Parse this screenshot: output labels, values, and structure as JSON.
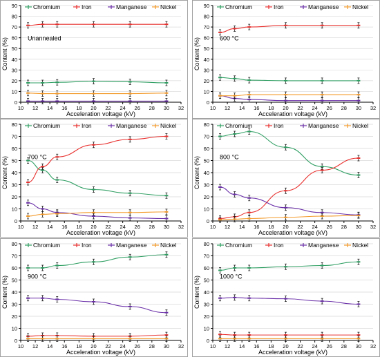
{
  "chart_data": [
    {
      "type": "line",
      "annotation": "Unannealed",
      "xlabel": "Acceleration voltage (kV)",
      "ylabel": "Content (%)",
      "xlim": [
        10,
        32
      ],
      "ylim": [
        0,
        90
      ],
      "xticks": [
        10,
        12,
        14,
        16,
        18,
        20,
        22,
        24,
        26,
        28,
        30,
        32
      ],
      "yticks": [
        0,
        10,
        20,
        30,
        40,
        50,
        60,
        70,
        80,
        90
      ],
      "legend_placement": "top",
      "x": [
        11,
        13,
        15,
        20,
        25,
        30
      ],
      "series": [
        {
          "name": "Chromium",
          "values": [
            18,
            18,
            18.5,
            19.5,
            19,
            18
          ]
        },
        {
          "name": "Iron",
          "values": [
            71.5,
            72.5,
            72.5,
            72.5,
            72.5,
            72.5
          ]
        },
        {
          "name": "Manganese",
          "values": [
            1,
            1,
            1,
            1,
            1,
            1
          ]
        },
        {
          "name": "Nickel",
          "values": [
            8.5,
            8,
            8,
            8,
            8,
            8.5
          ]
        }
      ]
    },
    {
      "type": "line",
      "annotation": "600 °C",
      "xlabel": "Acceleration voltage (kV)",
      "ylabel": "Content (%)",
      "xlim": [
        10,
        32
      ],
      "ylim": [
        0,
        90
      ],
      "xticks": [
        10,
        12,
        14,
        16,
        18,
        20,
        22,
        24,
        26,
        28,
        30,
        32
      ],
      "yticks": [
        0,
        10,
        20,
        30,
        40,
        50,
        60,
        70,
        80,
        90
      ],
      "legend_placement": "top",
      "x": [
        11,
        13,
        15,
        20,
        25,
        30
      ],
      "series": [
        {
          "name": "Chromium",
          "values": [
            23,
            22,
            20.5,
            20,
            20,
            20
          ]
        },
        {
          "name": "Iron",
          "values": [
            65,
            68.5,
            70,
            71.5,
            71.5,
            71.5
          ]
        },
        {
          "name": "Manganese",
          "values": [
            6,
            3.5,
            2.5,
            1.5,
            1.5,
            1.5
          ]
        },
        {
          "name": "Nickel",
          "values": [
            6,
            6,
            7,
            7,
            7,
            7
          ]
        }
      ]
    },
    {
      "type": "line",
      "annotation": "700 °C",
      "xlabel": "Acceleration voltage (kV)",
      "ylabel": "Content (%)",
      "xlim": [
        10,
        32
      ],
      "ylim": [
        0,
        80
      ],
      "xticks": [
        10,
        12,
        14,
        16,
        18,
        20,
        22,
        24,
        26,
        28,
        30,
        32
      ],
      "yticks": [
        0,
        10,
        20,
        30,
        40,
        50,
        60,
        70,
        80
      ],
      "legend_placement": "top",
      "x": [
        11,
        13,
        15,
        20,
        25,
        30
      ],
      "series": [
        {
          "name": "Chromium",
          "values": [
            50,
            42,
            34,
            26,
            23,
            21
          ]
        },
        {
          "name": "Iron",
          "values": [
            32,
            45,
            53,
            63,
            67.5,
            70
          ]
        },
        {
          "name": "Manganese",
          "values": [
            15,
            10,
            7,
            4,
            2.5,
            2
          ]
        },
        {
          "name": "Nickel",
          "values": [
            4,
            5.5,
            6,
            7,
            7,
            7.5
          ]
        }
      ]
    },
    {
      "type": "line",
      "annotation": "800 °C",
      "xlabel": "Acceleration voltage (kV)",
      "ylabel": "Content (%)",
      "xlim": [
        10,
        32
      ],
      "ylim": [
        0,
        80
      ],
      "xticks": [
        10,
        12,
        14,
        16,
        18,
        20,
        22,
        24,
        26,
        28,
        30,
        32
      ],
      "yticks": [
        0,
        10,
        20,
        30,
        40,
        50,
        60,
        70,
        80
      ],
      "legend_placement": "top",
      "x": [
        11,
        13,
        15,
        20,
        25,
        30
      ],
      "series": [
        {
          "name": "Chromium",
          "values": [
            70,
            72,
            74,
            61,
            45,
            38
          ]
        },
        {
          "name": "Iron",
          "values": [
            2,
            3.5,
            7,
            25,
            42,
            52
          ]
        },
        {
          "name": "Manganese",
          "values": [
            28,
            22,
            19,
            11,
            7,
            5
          ]
        },
        {
          "name": "Nickel",
          "values": [
            1,
            1.5,
            2,
            3,
            4,
            4.5
          ]
        }
      ]
    },
    {
      "type": "line",
      "annotation": "900 °C",
      "xlabel": "Acceleration voltage (kV)",
      "ylabel": "Content (%)",
      "xlim": [
        10,
        32
      ],
      "ylim": [
        0,
        80
      ],
      "xticks": [
        10,
        12,
        14,
        16,
        18,
        20,
        22,
        24,
        26,
        28,
        30,
        32
      ],
      "yticks": [
        0,
        10,
        20,
        30,
        40,
        50,
        60,
        70,
        80
      ],
      "legend_placement": "top",
      "x": [
        11,
        13,
        15,
        20,
        25,
        30
      ],
      "series": [
        {
          "name": "Chromium",
          "values": [
            60,
            60,
            62,
            65,
            69,
            71
          ]
        },
        {
          "name": "Iron",
          "values": [
            3.5,
            4,
            4,
            3.5,
            3.5,
            4.5
          ]
        },
        {
          "name": "Manganese",
          "values": [
            35,
            35,
            34,
            32,
            28,
            23
          ]
        },
        {
          "name": "Nickel",
          "values": [
            1.5,
            1.5,
            1.5,
            1.5,
            1.5,
            1.5
          ]
        }
      ]
    },
    {
      "type": "line",
      "annotation": "1000 °C",
      "xlabel": "Acceleration voltage (kV)",
      "ylabel": "Content (%)",
      "xlim": [
        10,
        32
      ],
      "ylim": [
        0,
        80
      ],
      "xticks": [
        10,
        12,
        14,
        16,
        18,
        20,
        22,
        24,
        26,
        28,
        30,
        32
      ],
      "yticks": [
        0,
        10,
        20,
        30,
        40,
        50,
        60,
        70,
        80
      ],
      "legend_placement": "top",
      "x": [
        11,
        13,
        15,
        20,
        25,
        30
      ],
      "series": [
        {
          "name": "Chromium",
          "values": [
            58,
            60,
            60,
            61,
            62,
            65
          ]
        },
        {
          "name": "Iron",
          "values": [
            5,
            4.5,
            4.5,
            4.5,
            4.5,
            4.5
          ]
        },
        {
          "name": "Manganese",
          "values": [
            35,
            35.5,
            35,
            34.5,
            32.5,
            30
          ]
        },
        {
          "name": "Nickel",
          "values": [
            1.5,
            1.5,
            1.5,
            1.5,
            1.5,
            1.5
          ]
        }
      ]
    }
  ],
  "colors": {
    "Chromium": "#2e9e62",
    "Iron": "#e8302e",
    "Manganese": "#6a2fa8",
    "Nickel": "#f39a2a",
    "axis": "#000000",
    "grid": "#d9d9d9",
    "errorbar": "#1a1a1a"
  },
  "marker": {
    "Chromium": "dash",
    "Iron": "dash",
    "Manganese": "dash",
    "Nickel": "dash"
  }
}
